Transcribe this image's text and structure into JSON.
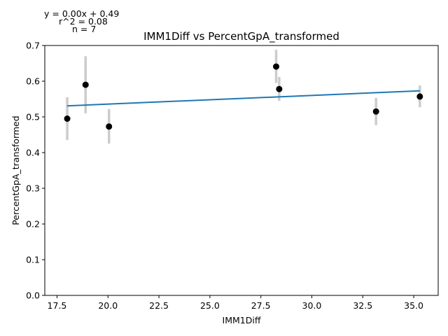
{
  "annotations": {
    "equation": "y = 0.00x + 0.49",
    "r2": "r^2 = 0.08",
    "n": "n = 7"
  },
  "colors": {
    "point": "#000000",
    "error_bar": "#cccccc",
    "fit_line": "#1f77b4",
    "axis": "#000000"
  },
  "chart_data": {
    "type": "scatter",
    "title": "IMM1Diff vs PercentGpA_transformed",
    "xlabel": "IMM1Diff",
    "ylabel": "PercentGpA_transformed",
    "xlim": [
      16.9,
      36.2
    ],
    "ylim": [
      0.0,
      0.7
    ],
    "xticks": [
      "17.5",
      "20.0",
      "22.5",
      "25.0",
      "27.5",
      "30.0",
      "32.5",
      "35.0"
    ],
    "xtick_values": [
      17.5,
      20.0,
      22.5,
      25.0,
      27.5,
      30.0,
      32.5,
      35.0
    ],
    "yticks": [
      "0.0",
      "0.1",
      "0.2",
      "0.3",
      "0.4",
      "0.5",
      "0.6",
      "0.7"
    ],
    "ytick_values": [
      0.0,
      0.1,
      0.2,
      0.3,
      0.4,
      0.5,
      0.6,
      0.7
    ],
    "grid": false,
    "points": [
      {
        "x": 18.0,
        "y": 0.495,
        "ylow": 0.435,
        "yhigh": 0.555
      },
      {
        "x": 18.9,
        "y": 0.59,
        "ylow": 0.51,
        "yhigh": 0.67
      },
      {
        "x": 20.05,
        "y": 0.473,
        "ylow": 0.425,
        "yhigh": 0.522
      },
      {
        "x": 28.25,
        "y": 0.641,
        "ylow": 0.595,
        "yhigh": 0.688
      },
      {
        "x": 28.4,
        "y": 0.578,
        "ylow": 0.545,
        "yhigh": 0.612
      },
      {
        "x": 33.15,
        "y": 0.515,
        "ylow": 0.477,
        "yhigh": 0.553
      },
      {
        "x": 35.3,
        "y": 0.557,
        "ylow": 0.527,
        "yhigh": 0.588
      }
    ],
    "fit_line": {
      "x": [
        18.0,
        35.3
      ],
      "y": [
        0.531,
        0.573
      ]
    }
  }
}
